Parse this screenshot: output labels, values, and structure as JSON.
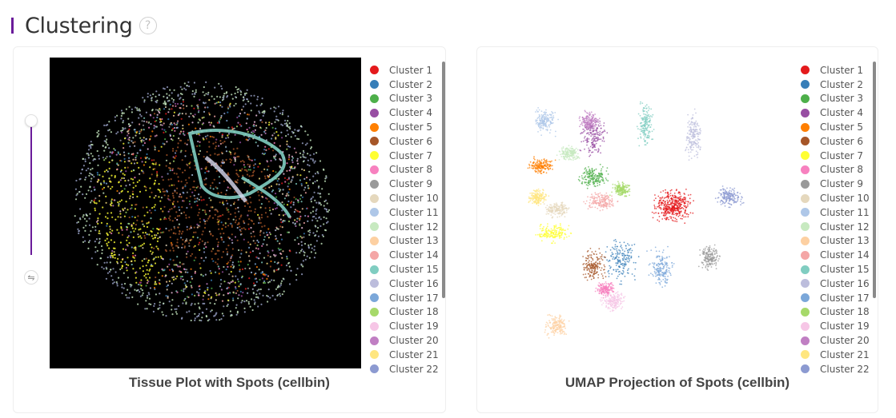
{
  "page": {
    "title": "Clustering",
    "help_icon": "question-circle-icon"
  },
  "left_panel": {
    "caption": "Tissue Plot with Spots (cellbin)",
    "slider_value": 1.0,
    "reset_icon": "swap-icon"
  },
  "right_panel": {
    "caption": "UMAP Projection of Spots (cellbin)"
  },
  "legend": [
    {
      "label": "Cluster 1",
      "color": "#e41a1c"
    },
    {
      "label": "Cluster 2",
      "color": "#377eb8"
    },
    {
      "label": "Cluster 3",
      "color": "#4daf4a"
    },
    {
      "label": "Cluster 4",
      "color": "#984ea3"
    },
    {
      "label": "Cluster 5",
      "color": "#ff7f00"
    },
    {
      "label": "Cluster 6",
      "color": "#a65628"
    },
    {
      "label": "Cluster 7",
      "color": "#ffff33"
    },
    {
      "label": "Cluster 8",
      "color": "#f781bf"
    },
    {
      "label": "Cluster 9",
      "color": "#999999"
    },
    {
      "label": "Cluster 10",
      "color": "#e5d8bd"
    },
    {
      "label": "Cluster 11",
      "color": "#aec7e8"
    },
    {
      "label": "Cluster 12",
      "color": "#c7e9c0"
    },
    {
      "label": "Cluster 13",
      "color": "#fdd0a2"
    },
    {
      "label": "Cluster 14",
      "color": "#f4a6a6"
    },
    {
      "label": "Cluster 15",
      "color": "#80cdc1"
    },
    {
      "label": "Cluster 16",
      "color": "#bcbddc"
    },
    {
      "label": "Cluster 17",
      "color": "#7ba7d9"
    },
    {
      "label": "Cluster 18",
      "color": "#a6d96a"
    },
    {
      "label": "Cluster 19",
      "color": "#f6c6e6"
    },
    {
      "label": "Cluster 20",
      "color": "#c07fc3"
    },
    {
      "label": "Cluster 21",
      "color": "#ffe680"
    },
    {
      "label": "Cluster 22",
      "color": "#8c9ad1"
    }
  ]
}
